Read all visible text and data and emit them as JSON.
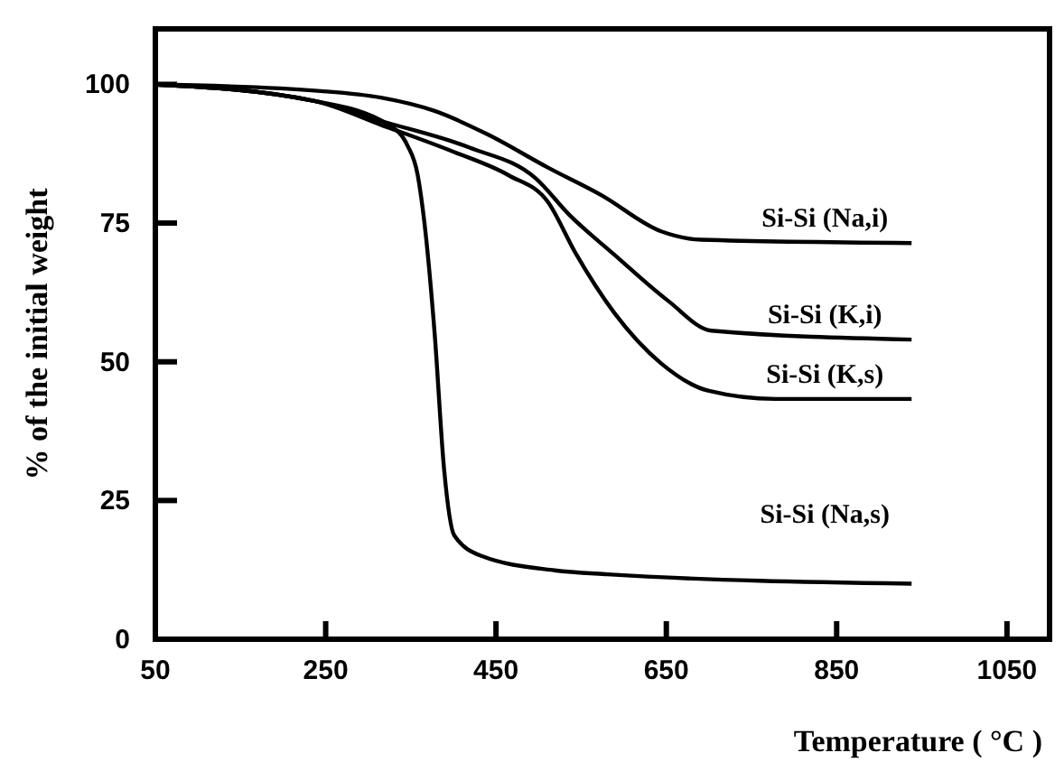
{
  "chart_data": {
    "type": "line",
    "xlabel": "Temperature ( °C )",
    "ylabel": "% of the initial weight",
    "xlim": [
      50,
      1100
    ],
    "ylim": [
      0,
      110
    ],
    "xticks": [
      50,
      250,
      450,
      650,
      850,
      1050
    ],
    "yticks": [
      0,
      25,
      50,
      75,
      100
    ],
    "grid": false,
    "marker": "none",
    "line_style": "solid",
    "series": [
      {
        "name": "Si-Si (Na,i)",
        "color": "#000000",
        "x": [
          50,
          244,
          315,
          378,
          440,
          511,
          574,
          644,
          691,
          938
        ],
        "values": [
          100,
          98.8,
          97.6,
          95.2,
          91,
          85,
          80,
          73.5,
          72,
          71.4
        ]
      },
      {
        "name": "Si-Si (K,i)",
        "color": "#000000",
        "x": [
          50,
          237,
          315,
          419,
          497,
          536,
          589,
          652,
          703,
          938
        ],
        "values": [
          100,
          97,
          93.4,
          88.6,
          83,
          76.5,
          69.3,
          61,
          55.6,
          54
        ]
      },
      {
        "name": "Si-Si (K,s)",
        "color": "#000000",
        "x": [
          50,
          237,
          315,
          401,
          465,
          511,
          543,
          589,
          644,
          699,
          778,
          938
        ],
        "values": [
          100,
          97,
          92.7,
          87.8,
          83.6,
          78.8,
          69.7,
          58.8,
          49.7,
          44.8,
          43.3,
          43.3
        ]
      },
      {
        "name": "Si-Si (Na,s)",
        "color": "#000000",
        "x": [
          50,
          237,
          323,
          346,
          358,
          366,
          378,
          389,
          401,
          433,
          519,
          581,
          938
        ],
        "values": [
          100,
          97,
          92.8,
          89,
          83.7,
          75,
          55,
          30.7,
          18.7,
          15,
          12.4,
          11.7,
          10
        ]
      }
    ]
  }
}
